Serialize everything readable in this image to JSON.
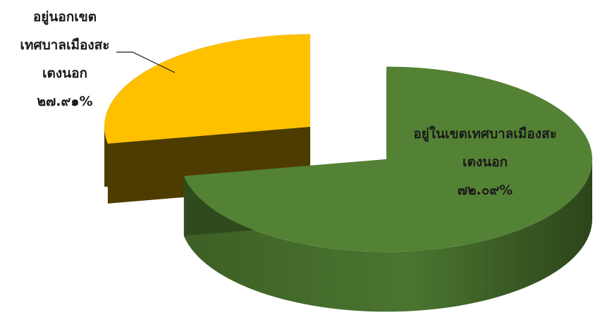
{
  "chart_data": {
    "type": "pie",
    "style": "3d-exploded",
    "slices": [
      {
        "label_lines": [
          "อยู่ในเขตเทศบาลเมืองสะ",
          "เตงนอก"
        ],
        "value_text": "๗๒.๐๙%",
        "value": 72.09,
        "color": "#548235"
      },
      {
        "label_lines": [
          "อยู่นอกเขต",
          "เทศบาลเมืองสะ",
          "เตงนอก"
        ],
        "value_text": "๒๗.๙๑%",
        "value": 27.91,
        "color": "#FFC000"
      }
    ],
    "legend": "none"
  }
}
